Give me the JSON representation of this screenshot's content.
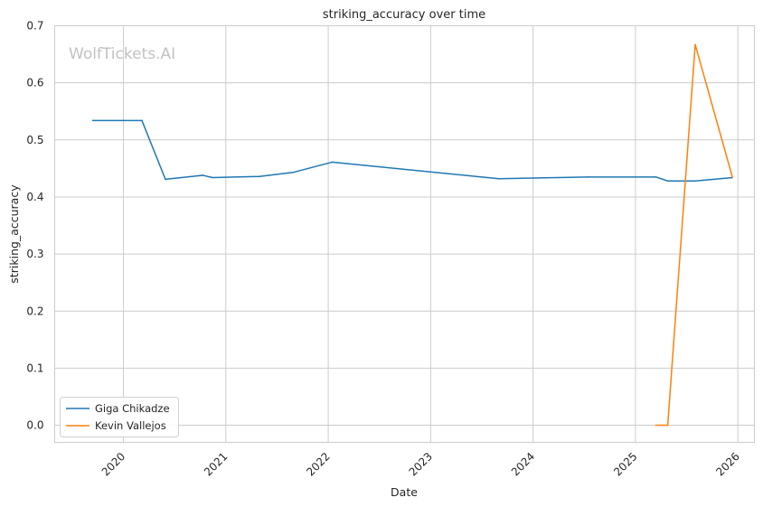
{
  "watermark": "WolfTickets.AI",
  "chart_data": {
    "type": "line",
    "title": "striking_accuracy over time",
    "xlabel": "Date",
    "ylabel": "striking_accuracy",
    "ylim": [
      -0.03,
      0.7
    ],
    "xlim": [
      "2019-05-01",
      "2026-03-01"
    ],
    "x_ticks": [
      "2020",
      "2021",
      "2022",
      "2023",
      "2024",
      "2025",
      "2026"
    ],
    "y_ticks": [
      "0.0",
      "0.1",
      "0.2",
      "0.3",
      "0.4",
      "0.5",
      "0.6",
      "0.7"
    ],
    "grid": true,
    "legend_position": "lower-left",
    "series": [
      {
        "name": "Giga Chikadze",
        "color": "#1f77b4",
        "points": [
          [
            "2019-09-14",
            0.534
          ],
          [
            "2020-03-07",
            0.534
          ],
          [
            "2020-05-30",
            0.431
          ],
          [
            "2020-10-10",
            0.438
          ],
          [
            "2020-11-14",
            0.434
          ],
          [
            "2021-05-01",
            0.436
          ],
          [
            "2021-08-28",
            0.443
          ],
          [
            "2022-01-15",
            0.461
          ],
          [
            "2023-09-01",
            0.432
          ],
          [
            "2024-07-15",
            0.435
          ],
          [
            "2025-03-15",
            0.435
          ],
          [
            "2025-04-26",
            0.428
          ],
          [
            "2025-08-02",
            0.428
          ],
          [
            "2025-12-13",
            0.434
          ]
        ]
      },
      {
        "name": "Kevin Vallejos",
        "color": "#ff7f0e",
        "points": [
          [
            "2025-03-15",
            0.0
          ],
          [
            "2025-04-26",
            0.0
          ],
          [
            "2025-08-02",
            0.667
          ],
          [
            "2025-12-13",
            0.434
          ]
        ]
      }
    ]
  }
}
